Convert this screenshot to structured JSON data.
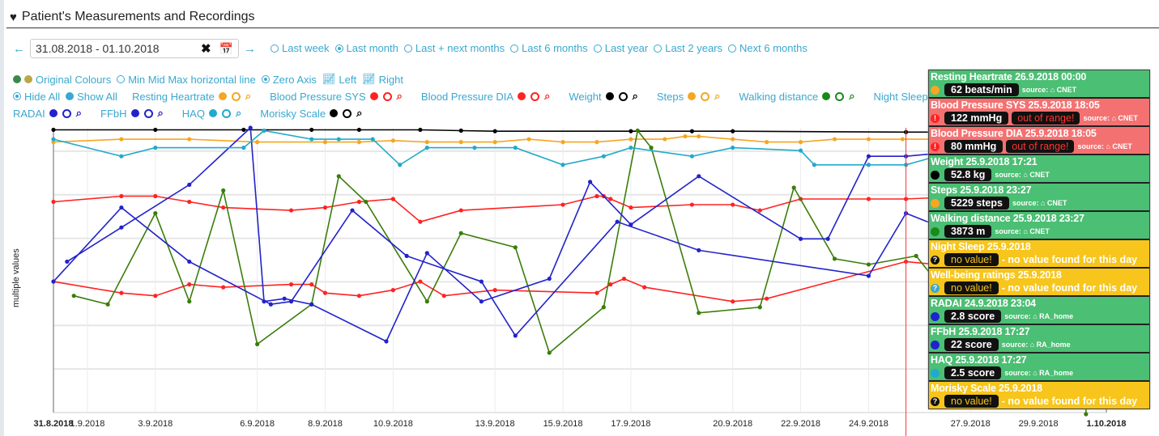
{
  "header": {
    "title": "Patient's Measurements and Recordings",
    "icon": "heartbeat-icon"
  },
  "daterange": {
    "value": "31.08.2018 - 01.10.2018",
    "clear_icon": "clear-icon",
    "calendar_icon": "calendar-icon"
  },
  "range_options": [
    {
      "label": "Last week",
      "selected": false
    },
    {
      "label": "Last month",
      "selected": true
    },
    {
      "label": "Last + next months",
      "selected": false
    },
    {
      "label": "Last 6 months",
      "selected": false
    },
    {
      "label": "Last year",
      "selected": false
    },
    {
      "label": "Last 2 years",
      "selected": false
    },
    {
      "label": "Next 6 months",
      "selected": false
    }
  ],
  "display_options": {
    "original_colours": "Original Colours",
    "min_mid_max": "Min Mid Max horizontal line",
    "zero_axis": "Zero Axis",
    "left": "Left",
    "right": "Right",
    "hide_all": "Hide All",
    "show_all": "Show All"
  },
  "colors": {
    "accent": "#3aa8cf",
    "ok": "#4bbf73",
    "alert": "#f47171",
    "missing": "#f7c51b",
    "cursor": "#f03a3a"
  },
  "chart_data": {
    "type": "line",
    "title": "",
    "xlabel": "",
    "ylabel": "multiple values",
    "x_unit": "days since 31.8.2018",
    "xlim": [
      0,
      31
    ],
    "ylim": [
      0,
      100
    ],
    "grid": true,
    "legend": "top",
    "x_ticks": [
      {
        "label": "31.8.2018",
        "x": 0,
        "bold": true
      },
      {
        "label": "1.9.2018",
        "x": 1
      },
      {
        "label": "3.9.2018",
        "x": 3
      },
      {
        "label": "6.9.2018",
        "x": 6
      },
      {
        "label": "8.9.2018",
        "x": 8
      },
      {
        "label": "10.9.2018",
        "x": 10
      },
      {
        "label": "13.9.2018",
        "x": 13
      },
      {
        "label": "15.9.2018",
        "x": 15
      },
      {
        "label": "17.9.2018",
        "x": 17
      },
      {
        "label": "20.9.2018",
        "x": 20
      },
      {
        "label": "22.9.2018",
        "x": 22
      },
      {
        "label": "24.9.2018",
        "x": 24
      },
      {
        "label": "27.9.2018",
        "x": 27
      },
      {
        "label": "29.9.2018",
        "x": 29
      },
      {
        "label": "1.10.2018",
        "x": 31,
        "bold": true
      }
    ],
    "y_gridlines": [
      0,
      15.3,
      30.6,
      45.9,
      61.2,
      76.5,
      91.8
    ],
    "cursor_x": 25.1,
    "series": [
      {
        "name": "Resting Heartrate",
        "color": "#f5a623",
        "x": [
          0,
          2,
          4,
          6,
          8,
          9,
          10,
          11,
          12,
          13,
          14,
          15,
          16,
          17,
          18,
          18.6,
          19,
          20,
          21,
          22,
          23,
          24,
          25,
          26,
          27
        ],
        "y": [
          95,
          96,
          96,
          95,
          95,
          95,
          95.5,
          95,
          95,
          95,
          96,
          95,
          95,
          96,
          96,
          97,
          97,
          96,
          95,
          95,
          96,
          96,
          96,
          96,
          96
        ]
      },
      {
        "name": "Blood Pressure SYS",
        "color": "#f22",
        "x": [
          0,
          2,
          3,
          4,
          5,
          7,
          8,
          9,
          10,
          10.8,
          12,
          15,
          16,
          16.2,
          16.4,
          17,
          18.8,
          20,
          20.8,
          22,
          24,
          25.1,
          27
        ],
        "y": [
          74,
          76,
          76,
          74,
          72,
          71,
          72,
          74,
          75,
          67,
          71,
          73,
          76,
          76,
          75,
          72,
          73,
          73,
          71,
          75,
          75,
          75,
          76
        ]
      },
      {
        "name": "Blood Pressure DIA",
        "color": "#f22",
        "x": [
          0,
          2,
          3,
          4,
          5,
          7,
          7.6,
          8,
          9,
          10,
          10.8,
          11.5,
          13,
          16,
          16.4,
          16.8,
          17.4,
          20,
          21,
          25.1,
          26,
          27
        ],
        "y": [
          46,
          42,
          41,
          45,
          44,
          45,
          45,
          42,
          41,
          43,
          46,
          41,
          43,
          42,
          45,
          47,
          44,
          39,
          40,
          53,
          52,
          53
        ]
      },
      {
        "name": "Weight",
        "color": "#000",
        "x": [
          0,
          3,
          5.6,
          7.6,
          9,
          10.8,
          12,
          13,
          17,
          18.8,
          20,
          25.1,
          27
        ],
        "y": [
          99.3,
          99.3,
          99.3,
          99.3,
          99.3,
          99.3,
          99,
          98.8,
          98.8,
          98.8,
          98.8,
          98.5,
          98.5
        ]
      },
      {
        "name": "Walking distance",
        "color": "#3a7d0a",
        "x": [
          0.6,
          1.6,
          3,
          4,
          5,
          6,
          7.6,
          8.4,
          9.2,
          11,
          12,
          13.6,
          14.6,
          16.2,
          17.2,
          17.6,
          19,
          20.8,
          21.8,
          23,
          24,
          25.4,
          26.4,
          27.2
        ],
        "y": [
          41,
          38,
          70,
          39,
          78,
          24,
          38,
          83,
          74,
          39,
          63,
          58,
          21,
          37,
          99,
          93,
          35,
          37,
          79,
          54,
          52,
          55,
          40,
          56
        ]
      },
      {
        "name": "Steps",
        "color": "#f5a623",
        "x": [],
        "y": []
      },
      {
        "name": "RADAI",
        "color": "#2222cc",
        "x": [
          0,
          2,
          4,
          6.4,
          7,
          8.8,
          10.4,
          12.6,
          13.6,
          16.6,
          19,
          24,
          25.1,
          27
        ],
        "y": [
          46,
          72,
          53,
          38,
          39,
          71,
          55,
          46,
          27,
          67,
          57,
          48,
          70,
          61
        ]
      },
      {
        "name": "FFbH",
        "color": "#2222cc",
        "x": [
          0.4,
          2,
          4,
          5.8,
          6.2,
          6.8,
          7.6,
          9.8,
          11,
          12.6,
          14.6,
          15.8,
          17,
          19,
          22,
          22.8,
          24,
          25.1,
          26,
          27
        ],
        "y": [
          53,
          65,
          80,
          100,
          39,
          40,
          38,
          25,
          56,
          39,
          47,
          81,
          66,
          83,
          61,
          61,
          90,
          90,
          91,
          90
        ]
      },
      {
        "name": "HAQ",
        "color": "#22aacc",
        "x": [
          0,
          2,
          3,
          5.6,
          6.2,
          7.6,
          8.4,
          9.4,
          10.2,
          11,
          12.4,
          13.6,
          15,
          16.2,
          17,
          18.8,
          20,
          22,
          22.4,
          24,
          25.1,
          26,
          27
        ],
        "y": [
          96,
          90,
          93,
          93,
          99,
          96,
          96,
          96,
          87,
          93,
          93,
          93,
          87,
          90,
          93,
          90,
          93,
          92,
          87,
          87,
          87,
          90,
          91
        ]
      },
      {
        "name": "Morisky Scale",
        "color": "#000",
        "x": [],
        "y": []
      }
    ]
  },
  "legend": [
    {
      "label": "Resting Heartrate",
      "color": "#f5a623"
    },
    {
      "label": "Blood Pressure SYS",
      "color": "#f22"
    },
    {
      "label": "Blood Pressure DIA",
      "color": "#f22"
    },
    {
      "label": "Weight",
      "color": "#000"
    },
    {
      "label": "Steps",
      "color": "#f5a623"
    },
    {
      "label": "Walking distance",
      "color": "#1a8a1a"
    },
    {
      "label": "Night Sleep",
      "color": "#3aa8cf"
    },
    {
      "label": "RADAI",
      "color": "#2222cc"
    },
    {
      "label": "FFbH",
      "color": "#2222cc"
    },
    {
      "label": "HAQ",
      "color": "#22aacc"
    },
    {
      "label": "Morisky Scale",
      "color": "#000"
    }
  ],
  "tooltip": [
    {
      "status": "green",
      "title": "Resting Heartrate 26.9.2018 00:00",
      "icon_color": "#f5a623",
      "value": "62 beats/min",
      "source": "source: ⌂ CNET"
    },
    {
      "status": "red",
      "title": "Blood Pressure SYS 25.9.2018 18:05",
      "icon": "alert",
      "value": "122 mmHg",
      "flag": "out of range!",
      "source": "source: ⌂ CNET"
    },
    {
      "status": "red",
      "title": "Blood Pressure DIA 25.9.2018 18:05",
      "icon": "alert",
      "value": "80 mmHg",
      "flag": "out of range!",
      "source": "source: ⌂ CNET"
    },
    {
      "status": "green",
      "title": "Weight 25.9.2018 17:21",
      "icon_color": "#000",
      "value": "52.8 kg",
      "source": "source: ⌂ CNET"
    },
    {
      "status": "green",
      "title": "Steps 25.9.2018 23:27",
      "icon_color": "#f5a623",
      "value": "5229 steps",
      "source": "source: ⌂ CNET"
    },
    {
      "status": "green",
      "title": "Walking distance 25.9.2018 23:27",
      "icon_color": "#1a8a1a",
      "value": "3873 m",
      "source": "source: ⌂ CNET"
    },
    {
      "status": "yellow",
      "title": "Night Sleep 25.9.2018",
      "icon": "question",
      "icon_color": "#111",
      "nov": "no value!",
      "msg": "- no value found for this day"
    },
    {
      "status": "yellow",
      "title": "Well-being ratings 25.9.2018",
      "icon": "question",
      "icon_color": "#3aa8cf",
      "nov": "no value!",
      "msg": "- no value found for this day"
    },
    {
      "status": "green",
      "title": "RADAI 24.9.2018 23:04",
      "icon_color": "#2222cc",
      "value": "2.8 score",
      "source": "source: ⌂ RA_home"
    },
    {
      "status": "green",
      "title": "FFbH 25.9.2018 17:27",
      "icon_color": "#2222cc",
      "value": "22 score",
      "source": "source: ⌂ RA_home"
    },
    {
      "status": "green",
      "title": "HAQ 25.9.2018 17:27",
      "icon_color": "#22aacc",
      "value": "2.5 score",
      "source": "source: ⌂ RA_home"
    },
    {
      "status": "yellow",
      "title": "Morisky Scale 25.9.2018",
      "icon": "question",
      "icon_color": "#111",
      "nov": "no value!",
      "msg": "- no value found for this day"
    }
  ]
}
